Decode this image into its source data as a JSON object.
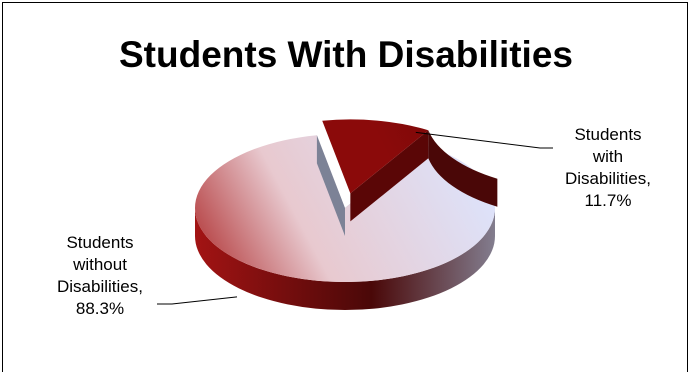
{
  "chart_data": {
    "type": "pie",
    "style": "3d-exploded",
    "title": "Students With Disabilities",
    "categories": [
      "Students with Disabilities",
      "Students without Disabilities"
    ],
    "values": [
      11.7,
      88.3
    ],
    "unit": "%",
    "data_labels": [
      {
        "lines": [
          "Students",
          "with",
          "Disabilities,",
          "11.7%"
        ]
      },
      {
        "lines": [
          "Students",
          "without",
          "Disabilities,",
          "88.3%"
        ]
      }
    ],
    "colors": {
      "with_disabilities": "#8b0a0a",
      "without_light": "#dde3fb",
      "without_dark": "#a51414",
      "side_dark": "#4a0808",
      "side_light": "#8e95aa"
    },
    "legend": "none",
    "grid": false
  }
}
